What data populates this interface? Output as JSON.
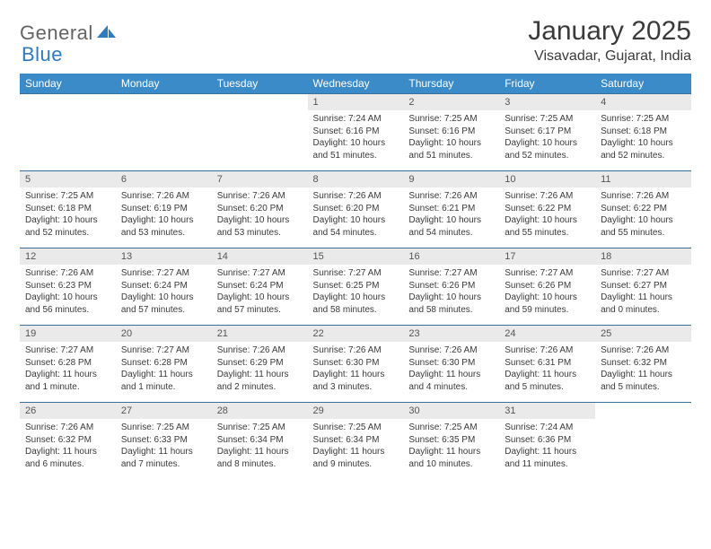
{
  "brand": {
    "part1": "General",
    "part2": "Blue"
  },
  "title": "January 2025",
  "location": "Visavadar, Gujarat, India",
  "colors": {
    "header_bg": "#3b8bc8",
    "header_text": "#ffffff",
    "daynum_bg": "#eaeaea",
    "cell_border": "#3b6f9a",
    "body_text": "#3a3a3a",
    "logo_gray": "#646464",
    "logo_blue": "#2f7bbf",
    "page_bg": "#ffffff"
  },
  "typography": {
    "title_fontsize": 30,
    "location_fontsize": 16,
    "header_fontsize": 12,
    "daynum_fontsize": 11,
    "cell_fontsize": 10
  },
  "weekdays": [
    "Sunday",
    "Monday",
    "Tuesday",
    "Wednesday",
    "Thursday",
    "Friday",
    "Saturday"
  ],
  "weeks": [
    [
      null,
      null,
      null,
      {
        "n": "1",
        "sunrise": "7:24 AM",
        "sunset": "6:16 PM",
        "daylight": "10 hours and 51 minutes."
      },
      {
        "n": "2",
        "sunrise": "7:25 AM",
        "sunset": "6:16 PM",
        "daylight": "10 hours and 51 minutes."
      },
      {
        "n": "3",
        "sunrise": "7:25 AM",
        "sunset": "6:17 PM",
        "daylight": "10 hours and 52 minutes."
      },
      {
        "n": "4",
        "sunrise": "7:25 AM",
        "sunset": "6:18 PM",
        "daylight": "10 hours and 52 minutes."
      }
    ],
    [
      {
        "n": "5",
        "sunrise": "7:25 AM",
        "sunset": "6:18 PM",
        "daylight": "10 hours and 52 minutes."
      },
      {
        "n": "6",
        "sunrise": "7:26 AM",
        "sunset": "6:19 PM",
        "daylight": "10 hours and 53 minutes."
      },
      {
        "n": "7",
        "sunrise": "7:26 AM",
        "sunset": "6:20 PM",
        "daylight": "10 hours and 53 minutes."
      },
      {
        "n": "8",
        "sunrise": "7:26 AM",
        "sunset": "6:20 PM",
        "daylight": "10 hours and 54 minutes."
      },
      {
        "n": "9",
        "sunrise": "7:26 AM",
        "sunset": "6:21 PM",
        "daylight": "10 hours and 54 minutes."
      },
      {
        "n": "10",
        "sunrise": "7:26 AM",
        "sunset": "6:22 PM",
        "daylight": "10 hours and 55 minutes."
      },
      {
        "n": "11",
        "sunrise": "7:26 AM",
        "sunset": "6:22 PM",
        "daylight": "10 hours and 55 minutes."
      }
    ],
    [
      {
        "n": "12",
        "sunrise": "7:26 AM",
        "sunset": "6:23 PM",
        "daylight": "10 hours and 56 minutes."
      },
      {
        "n": "13",
        "sunrise": "7:27 AM",
        "sunset": "6:24 PM",
        "daylight": "10 hours and 57 minutes."
      },
      {
        "n": "14",
        "sunrise": "7:27 AM",
        "sunset": "6:24 PM",
        "daylight": "10 hours and 57 minutes."
      },
      {
        "n": "15",
        "sunrise": "7:27 AM",
        "sunset": "6:25 PM",
        "daylight": "10 hours and 58 minutes."
      },
      {
        "n": "16",
        "sunrise": "7:27 AM",
        "sunset": "6:26 PM",
        "daylight": "10 hours and 58 minutes."
      },
      {
        "n": "17",
        "sunrise": "7:27 AM",
        "sunset": "6:26 PM",
        "daylight": "10 hours and 59 minutes."
      },
      {
        "n": "18",
        "sunrise": "7:27 AM",
        "sunset": "6:27 PM",
        "daylight": "11 hours and 0 minutes."
      }
    ],
    [
      {
        "n": "19",
        "sunrise": "7:27 AM",
        "sunset": "6:28 PM",
        "daylight": "11 hours and 1 minute."
      },
      {
        "n": "20",
        "sunrise": "7:27 AM",
        "sunset": "6:28 PM",
        "daylight": "11 hours and 1 minute."
      },
      {
        "n": "21",
        "sunrise": "7:26 AM",
        "sunset": "6:29 PM",
        "daylight": "11 hours and 2 minutes."
      },
      {
        "n": "22",
        "sunrise": "7:26 AM",
        "sunset": "6:30 PM",
        "daylight": "11 hours and 3 minutes."
      },
      {
        "n": "23",
        "sunrise": "7:26 AM",
        "sunset": "6:30 PM",
        "daylight": "11 hours and 4 minutes."
      },
      {
        "n": "24",
        "sunrise": "7:26 AM",
        "sunset": "6:31 PM",
        "daylight": "11 hours and 5 minutes."
      },
      {
        "n": "25",
        "sunrise": "7:26 AM",
        "sunset": "6:32 PM",
        "daylight": "11 hours and 5 minutes."
      }
    ],
    [
      {
        "n": "26",
        "sunrise": "7:26 AM",
        "sunset": "6:32 PM",
        "daylight": "11 hours and 6 minutes."
      },
      {
        "n": "27",
        "sunrise": "7:25 AM",
        "sunset": "6:33 PM",
        "daylight": "11 hours and 7 minutes."
      },
      {
        "n": "28",
        "sunrise": "7:25 AM",
        "sunset": "6:34 PM",
        "daylight": "11 hours and 8 minutes."
      },
      {
        "n": "29",
        "sunrise": "7:25 AM",
        "sunset": "6:34 PM",
        "daylight": "11 hours and 9 minutes."
      },
      {
        "n": "30",
        "sunrise": "7:25 AM",
        "sunset": "6:35 PM",
        "daylight": "11 hours and 10 minutes."
      },
      {
        "n": "31",
        "sunrise": "7:24 AM",
        "sunset": "6:36 PM",
        "daylight": "11 hours and 11 minutes."
      },
      null
    ]
  ],
  "labels": {
    "sunrise": "Sunrise: ",
    "sunset": "Sunset: ",
    "daylight": "Daylight: "
  }
}
